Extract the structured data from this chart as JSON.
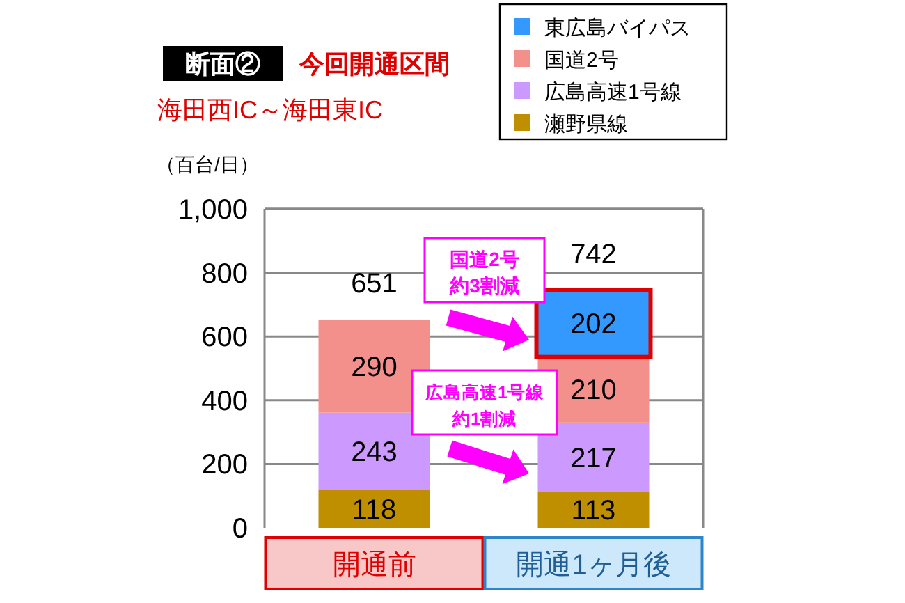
{
  "chart_data": {
    "type": "bar",
    "stacked": true,
    "title": "断面②",
    "subtitle": "今回開通区間",
    "ylabel": "（百台/日）",
    "categories": [
      "開通前",
      "開通1ヶ月後"
    ],
    "series": [
      {
        "name": "瀬野県線",
        "color": "#bf8f00",
        "values": [
          118,
          113
        ]
      },
      {
        "name": "広島高速1号線",
        "color": "#cc99ff",
        "values": [
          243,
          217
        ]
      },
      {
        "name": "国道2号",
        "color": "#f4908c",
        "values": [
          290,
          210
        ]
      },
      {
        "name": "東広島バイパス",
        "color": "#3399ff",
        "values": [
          null,
          202
        ]
      }
    ],
    "totals": [
      "651",
      "742"
    ],
    "data_labels": true,
    "ylim": [
      0,
      1000
    ],
    "yticks": [
      0,
      200,
      400,
      600,
      800,
      {
        "value": 1000,
        "label": "1,000"
      }
    ],
    "grid": "y",
    "legend": "top right",
    "annotations": [
      "海田西IC～海田東IC",
      "国道2号",
      "約3割減",
      "広島高速1号線",
      "約1割減"
    ]
  }
}
